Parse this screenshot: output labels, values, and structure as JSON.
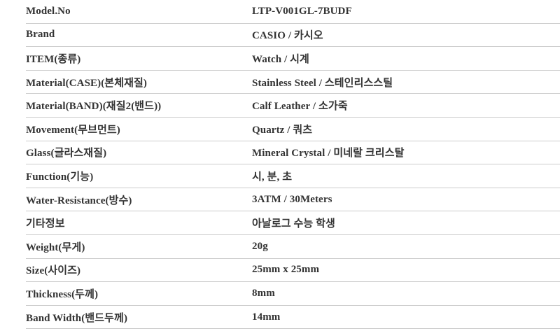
{
  "page": {
    "background_color": "#ffffff",
    "text_color": "#333333",
    "divider_color": "#cccccc"
  },
  "spec_table": {
    "rows": [
      {
        "label": "Model.No",
        "value": "LTP-V001GL-7BUDF"
      },
      {
        "label": "Brand",
        "value": "CASIO / 카시오"
      },
      {
        "label": "ITEM(종류)",
        "value": "Watch / 시계"
      },
      {
        "label": "Material(CASE)(본체재질)",
        "value": "Stainless Steel / 스테인리스스틸"
      },
      {
        "label": "Material(BAND)(재질2(밴드))",
        "value": "Calf Leather / 소가죽"
      },
      {
        "label": "Movement(무브먼트)",
        "value": "Quartz / 쿼츠"
      },
      {
        "label": "Glass(글라스재질)",
        "value": "Mineral Crystal / 미네랄 크리스탈"
      },
      {
        "label": "Function(기능)",
        "value": "시, 분, 초"
      },
      {
        "label": "Water-Resistance(방수)",
        "value": "3ATM / 30Meters"
      },
      {
        "label": "기타정보",
        "value": "아날로그 수능 학생"
      },
      {
        "label": "Weight(무게)",
        "value": "20g"
      },
      {
        "label": "Size(사이즈)",
        "value": "25mm x 25mm"
      },
      {
        "label": "Thickness(두께)",
        "value": "8mm"
      },
      {
        "label": "Band Width(밴드두께)",
        "value": "14mm"
      }
    ]
  }
}
